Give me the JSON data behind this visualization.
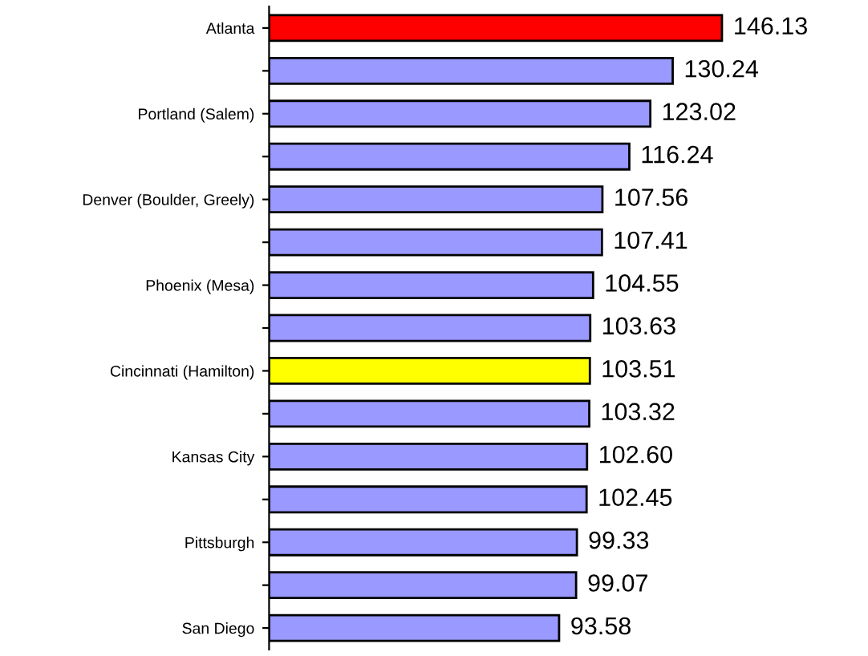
{
  "chart_data": {
    "type": "bar",
    "orientation": "horizontal",
    "categories": [
      "Atlanta",
      null,
      "Portland (Salem)",
      null,
      "Denver (Boulder, Greely)",
      null,
      "Phoenix (Mesa)",
      null,
      "Cincinnati (Hamilton)",
      null,
      "Kansas City",
      null,
      "Pittsburgh",
      null,
      "San Diego"
    ],
    "values": [
      146.13,
      130.24,
      123.02,
      116.24,
      107.56,
      107.41,
      104.55,
      103.63,
      103.51,
      103.32,
      102.6,
      102.45,
      99.33,
      99.07,
      93.58
    ],
    "value_labels": [
      "146.13",
      "130.24",
      "123.02",
      "116.24",
      "107.56",
      "107.41",
      "104.55",
      "103.63",
      "103.51",
      "103.32",
      "102.60",
      "102.45",
      "99.33",
      "99.07",
      "93.58"
    ],
    "colors": [
      "#ff0000",
      "#9999ff",
      "#9999ff",
      "#9999ff",
      "#9999ff",
      "#9999ff",
      "#9999ff",
      "#9999ff",
      "#ffff00",
      "#9999ff",
      "#9999ff",
      "#9999ff",
      "#9999ff",
      "#9999ff",
      "#9999ff"
    ],
    "grid": false,
    "legend": false
  }
}
